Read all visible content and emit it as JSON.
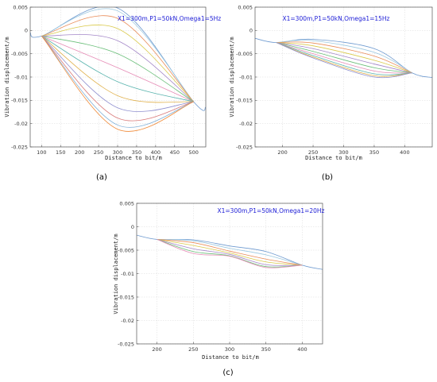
{
  "chart_data": [
    {
      "id": "a",
      "type": "line",
      "panel_label": "(a)",
      "annotation": "X1=300m,P1=50kN,Omega1=5Hz",
      "xlabel": "Distance to bit/m",
      "ylabel": "Vibration displacement/m",
      "xlim": [
        70,
        532
      ],
      "ylim": [
        -0.025,
        0.005
      ],
      "xticks": [
        100,
        150,
        200,
        250,
        300,
        350,
        400,
        450,
        500
      ],
      "yticks": [
        0.005,
        0,
        -0.005,
        -0.01,
        -0.015,
        -0.02,
        -0.025
      ],
      "xtick_labels": [
        "100",
        "150",
        "200",
        "250",
        "300",
        "350",
        "400",
        "450",
        "500"
      ],
      "ytick_labels": [
        "0.005",
        "0",
        "-0.005",
        "-0.01",
        "-0.015",
        "-0.02",
        "-0.025"
      ],
      "grid": true,
      "series": [
        {
          "values": [
            [
              70,
              -0.0005
            ],
            [
              100,
              -0.0012
            ],
            [
              300,
              0.0048
            ],
            [
              500,
              -0.0153
            ],
            [
              532,
              -0.0165
            ]
          ]
        },
        {
          "values": [
            [
              100,
              -0.0012
            ],
            [
              300,
              0.0042
            ],
            [
              500,
              -0.0153
            ]
          ]
        },
        {
          "values": [
            [
              100,
              -0.0012
            ],
            [
              300,
              0.0026
            ],
            [
              500,
              -0.0153
            ]
          ]
        },
        {
          "values": [
            [
              100,
              -0.0012
            ],
            [
              300,
              0.0004
            ],
            [
              500,
              -0.0153
            ]
          ]
        },
        {
          "values": [
            [
              100,
              -0.0012
            ],
            [
              300,
              -0.0022
            ],
            [
              500,
              -0.0153
            ]
          ]
        },
        {
          "values": [
            [
              100,
              -0.0012
            ],
            [
              300,
              -0.005
            ],
            [
              500,
              -0.0153
            ]
          ]
        },
        {
          "values": [
            [
              100,
              -0.0012
            ],
            [
              300,
              -0.008
            ],
            [
              500,
              -0.0153
            ]
          ]
        },
        {
          "values": [
            [
              100,
              -0.0012
            ],
            [
              300,
              -0.011
            ],
            [
              500,
              -0.0153
            ]
          ]
        },
        {
          "values": [
            [
              100,
              -0.0012
            ],
            [
              300,
              -0.014
            ],
            [
              500,
              -0.0153
            ]
          ]
        },
        {
          "values": [
            [
              100,
              -0.0012
            ],
            [
              300,
              -0.0166
            ],
            [
              500,
              -0.0153
            ]
          ]
        },
        {
          "values": [
            [
              100,
              -0.0012
            ],
            [
              300,
              -0.0188
            ],
            [
              500,
              -0.0153
            ]
          ]
        },
        {
          "values": [
            [
              100,
              -0.0012
            ],
            [
              300,
              -0.0203
            ],
            [
              500,
              -0.0153
            ]
          ]
        },
        {
          "values": [
            [
              100,
              -0.0012
            ],
            [
              300,
              -0.0212
            ],
            [
              500,
              -0.0153
            ]
          ]
        }
      ]
    },
    {
      "id": "b",
      "type": "line",
      "panel_label": "(b)",
      "annotation": "X1=300m,P1=50kN,Omega1=15Hz",
      "xlabel": "Distance to bit/m",
      "ylabel": "Vibration displacement/m",
      "xlim": [
        155,
        445
      ],
      "ylim": [
        -0.025,
        0.005
      ],
      "xticks": [
        200,
        250,
        300,
        350,
        400
      ],
      "yticks": [
        0.005,
        0,
        -0.005,
        -0.01,
        -0.015,
        -0.02,
        -0.025
      ],
      "xtick_labels": [
        "200",
        "250",
        "300",
        "350",
        "400"
      ],
      "ytick_labels": [
        "0.005",
        "0",
        "-0.005",
        "-0.01",
        "-0.015",
        "-0.02",
        "-0.025"
      ],
      "grid": true,
      "series": [
        {
          "values": [
            [
              155,
              -0.0017
            ],
            [
              190,
              -0.0026
            ],
            [
              250,
              -0.0019
            ],
            [
              350,
              -0.0039
            ],
            [
              412,
              -0.0091
            ],
            [
              445,
              -0.0101
            ]
          ]
        },
        {
          "values": [
            [
              190,
              -0.0026
            ],
            [
              250,
              -0.0022
            ],
            [
              350,
              -0.0047
            ],
            [
              412,
              -0.0091
            ]
          ]
        },
        {
          "values": [
            [
              190,
              -0.0026
            ],
            [
              250,
              -0.0027
            ],
            [
              350,
              -0.0055
            ],
            [
              412,
              -0.0091
            ]
          ]
        },
        {
          "values": [
            [
              190,
              -0.0026
            ],
            [
              250,
              -0.0033
            ],
            [
              350,
              -0.0064
            ],
            [
              412,
              -0.0091
            ]
          ]
        },
        {
          "values": [
            [
              190,
              -0.0026
            ],
            [
              250,
              -0.0039
            ],
            [
              350,
              -0.0072
            ],
            [
              412,
              -0.0091
            ]
          ]
        },
        {
          "values": [
            [
              190,
              -0.0026
            ],
            [
              250,
              -0.0045
            ],
            [
              350,
              -0.008
            ],
            [
              412,
              -0.0091
            ]
          ]
        },
        {
          "values": [
            [
              190,
              -0.0026
            ],
            [
              250,
              -0.005
            ],
            [
              350,
              -0.0087
            ],
            [
              412,
              -0.0091
            ]
          ]
        },
        {
          "values": [
            [
              190,
              -0.0026
            ],
            [
              250,
              -0.0054
            ],
            [
              350,
              -0.0093
            ],
            [
              412,
              -0.0091
            ]
          ]
        },
        {
          "values": [
            [
              190,
              -0.0026
            ],
            [
              250,
              -0.0057
            ],
            [
              350,
              -0.0097
            ],
            [
              412,
              -0.0091
            ]
          ]
        },
        {
          "values": [
            [
              190,
              -0.0026
            ],
            [
              250,
              -0.0059
            ],
            [
              350,
              -0.01
            ],
            [
              412,
              -0.0091
            ]
          ]
        }
      ]
    },
    {
      "id": "c",
      "type": "line",
      "panel_label": "(c)",
      "annotation": "X1=300m,P1=50kN,Omega1=20Hz",
      "xlabel": "Distance to bit/m",
      "ylabel": "Vibration displacement/m",
      "xlim": [
        172,
        428
      ],
      "ylim": [
        -0.025,
        0.005
      ],
      "xticks": [
        200,
        250,
        300,
        350,
        400
      ],
      "yticks": [
        0.005,
        0,
        -0.005,
        -0.01,
        -0.015,
        -0.02,
        -0.025
      ],
      "xtick_labels": [
        "200",
        "250",
        "300",
        "350",
        "400"
      ],
      "ytick_labels": [
        "0.005",
        "0",
        "-0.005",
        "-0.01",
        "-0.015",
        "-0.02",
        "-0.025"
      ],
      "grid": true,
      "series": [
        {
          "values": [
            [
              172,
              -0.0018
            ],
            [
              200,
              -0.0027
            ],
            [
              250,
              -0.0028
            ],
            [
              300,
              -0.0041
            ],
            [
              350,
              -0.0053
            ],
            [
              400,
              -0.0082
            ],
            [
              428,
              -0.0091
            ]
          ]
        },
        {
          "values": [
            [
              200,
              -0.0027
            ],
            [
              250,
              -0.003
            ],
            [
              300,
              -0.0046
            ],
            [
              350,
              -0.006
            ],
            [
              400,
              -0.0082
            ]
          ]
        },
        {
          "values": [
            [
              200,
              -0.0027
            ],
            [
              250,
              -0.0034
            ],
            [
              300,
              -0.0052
            ],
            [
              350,
              -0.0069
            ],
            [
              400,
              -0.0082
            ]
          ]
        },
        {
          "values": [
            [
              200,
              -0.0027
            ],
            [
              250,
              -0.004
            ],
            [
              300,
              -0.0056
            ],
            [
              350,
              -0.0075
            ],
            [
              400,
              -0.0082
            ]
          ]
        },
        {
          "values": [
            [
              200,
              -0.0027
            ],
            [
              250,
              -0.0047
            ],
            [
              300,
              -0.0059
            ],
            [
              350,
              -0.0081
            ],
            [
              400,
              -0.0082
            ]
          ]
        },
        {
          "values": [
            [
              200,
              -0.0027
            ],
            [
              250,
              -0.0053
            ],
            [
              300,
              -0.0062
            ],
            [
              350,
              -0.0085
            ],
            [
              400,
              -0.0082
            ]
          ]
        },
        {
          "values": [
            [
              200,
              -0.0027
            ],
            [
              250,
              -0.0057
            ],
            [
              300,
              -0.0063
            ],
            [
              350,
              -0.0087
            ],
            [
              400,
              -0.0082
            ]
          ]
        }
      ]
    }
  ]
}
